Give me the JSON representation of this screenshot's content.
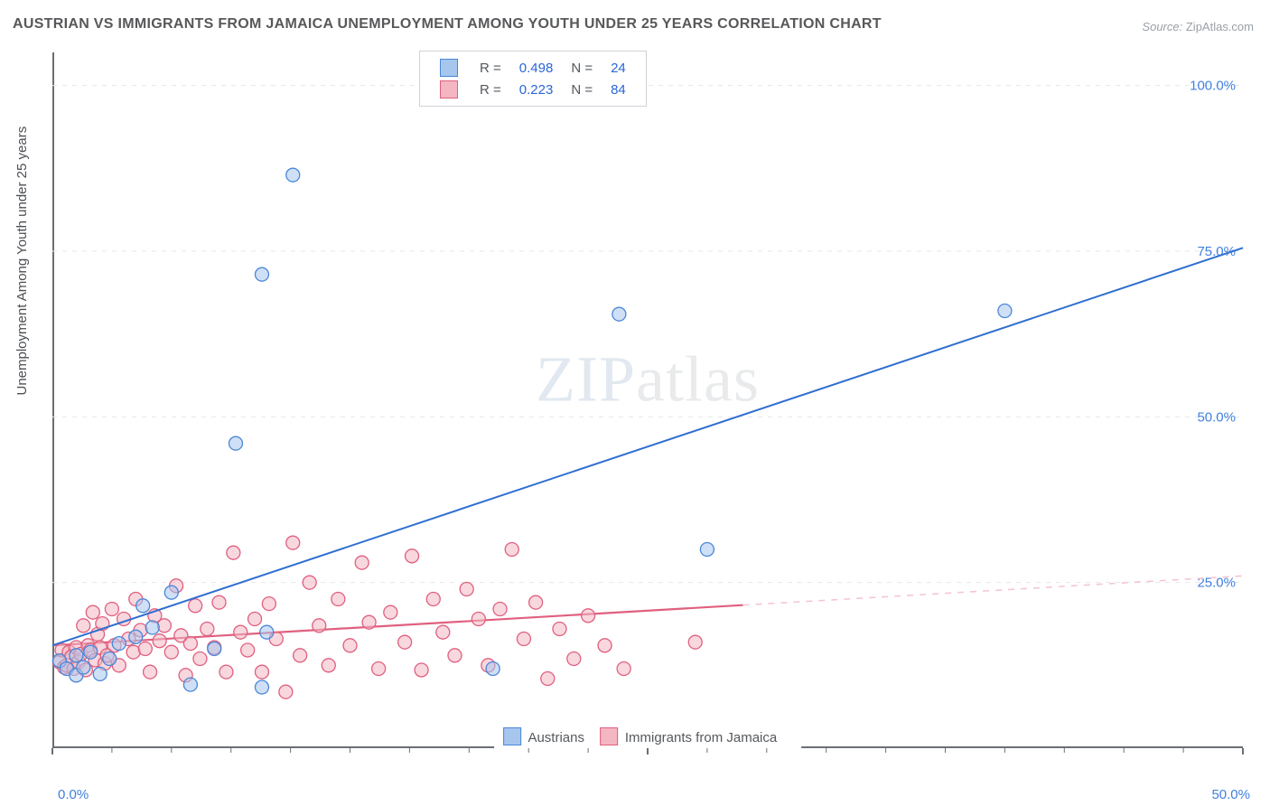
{
  "title": "AUSTRIAN VS IMMIGRANTS FROM JAMAICA UNEMPLOYMENT AMONG YOUTH UNDER 25 YEARS CORRELATION CHART",
  "source_label": "Source:",
  "source_value": "ZipAtlas.com",
  "y_axis_label": "Unemployment Among Youth under 25 years",
  "watermark_a": "ZIP",
  "watermark_b": "atlas",
  "chart": {
    "type": "scatter",
    "x_domain": [
      0,
      50
    ],
    "y_domain": [
      0,
      105
    ],
    "x_ticks_major": [
      0,
      25,
      50
    ],
    "x_tick_labels": {
      "left": "0.0%",
      "right": "50.0%"
    },
    "y_gridlines": [
      25,
      50,
      75,
      100
    ],
    "y_tick_labels": [
      "25.0%",
      "50.0%",
      "75.0%",
      "100.0%"
    ],
    "grid_color": "#e6e8ea",
    "axis_color": "#6b6e73",
    "tick_label_color": "#3f7fe0",
    "tick_label_fontsize": 15,
    "background": "#ffffff",
    "marker_radius": 7.5,
    "marker_stroke_width": 1.3,
    "series": [
      {
        "name": "Austrians",
        "fill": "#a7c6ee",
        "stroke": "#4a87d8",
        "fill_opacity": 0.55,
        "r_label": "R =",
        "r_value": "0.498",
        "n_label": "N =",
        "n_value": "24",
        "trend": {
          "x1": 0,
          "y1": 15.5,
          "x2": 50,
          "y2": 75.5,
          "dash_after_x": 50,
          "stroke": "#2f6fd0",
          "width": 2.0
        },
        "points": [
          [
            0.3,
            13.2
          ],
          [
            0.6,
            12.0
          ],
          [
            1.0,
            14.0
          ],
          [
            1.0,
            11.0
          ],
          [
            1.3,
            12.2
          ],
          [
            1.6,
            14.5
          ],
          [
            2.0,
            11.2
          ],
          [
            2.4,
            13.5
          ],
          [
            2.8,
            15.8
          ],
          [
            3.5,
            16.8
          ],
          [
            3.8,
            21.5
          ],
          [
            4.2,
            18.2
          ],
          [
            5.0,
            23.5
          ],
          [
            5.8,
            9.6
          ],
          [
            6.8,
            15.0
          ],
          [
            7.7,
            46.0
          ],
          [
            8.8,
            71.5
          ],
          [
            8.8,
            9.2
          ],
          [
            9.0,
            17.5
          ],
          [
            10.1,
            86.5
          ],
          [
            18.5,
            12.0
          ],
          [
            23.8,
            65.5
          ],
          [
            27.5,
            30.0
          ],
          [
            40.0,
            66.0
          ]
        ]
      },
      {
        "name": "Immigrants from Jamaica",
        "fill": "#f3b6c2",
        "stroke": "#e0607f",
        "fill_opacity": 0.55,
        "r_label": "R =",
        "r_value": "0.223",
        "n_label": "N =",
        "n_value": "84",
        "trend": {
          "x1": 0,
          "y1": 15.5,
          "x2": 50,
          "y2": 26.0,
          "dash_after_x": 29,
          "stroke": "#e0607f",
          "width": 2.2,
          "dash_stroke": "#f4c5cf"
        },
        "points": [
          [
            0.3,
            13.0
          ],
          [
            0.4,
            14.8
          ],
          [
            0.5,
            12.2
          ],
          [
            0.6,
            12.5
          ],
          [
            0.7,
            14.5
          ],
          [
            0.8,
            13.8
          ],
          [
            0.9,
            12.0
          ],
          [
            1.0,
            15.2
          ],
          [
            1.1,
            13.0
          ],
          [
            1.2,
            14.2
          ],
          [
            1.3,
            18.5
          ],
          [
            1.4,
            11.8
          ],
          [
            1.5,
            15.5
          ],
          [
            1.6,
            14.8
          ],
          [
            1.7,
            20.5
          ],
          [
            1.8,
            13.3
          ],
          [
            1.9,
            17.2
          ],
          [
            2.0,
            15.2
          ],
          [
            2.1,
            18.8
          ],
          [
            2.2,
            12.8
          ],
          [
            2.3,
            14.0
          ],
          [
            2.5,
            21.0
          ],
          [
            2.6,
            15.5
          ],
          [
            2.8,
            12.5
          ],
          [
            3.0,
            19.5
          ],
          [
            3.2,
            16.5
          ],
          [
            3.4,
            14.5
          ],
          [
            3.5,
            22.5
          ],
          [
            3.7,
            17.8
          ],
          [
            3.9,
            15.0
          ],
          [
            4.1,
            11.5
          ],
          [
            4.3,
            20.0
          ],
          [
            4.5,
            16.2
          ],
          [
            4.7,
            18.5
          ],
          [
            5.0,
            14.5
          ],
          [
            5.2,
            24.5
          ],
          [
            5.4,
            17.0
          ],
          [
            5.6,
            11.0
          ],
          [
            5.8,
            15.8
          ],
          [
            6.0,
            21.5
          ],
          [
            6.2,
            13.5
          ],
          [
            6.5,
            18.0
          ],
          [
            6.8,
            15.2
          ],
          [
            7.0,
            22.0
          ],
          [
            7.3,
            11.5
          ],
          [
            7.6,
            29.5
          ],
          [
            7.9,
            17.5
          ],
          [
            8.2,
            14.8
          ],
          [
            8.5,
            19.5
          ],
          [
            8.8,
            11.5
          ],
          [
            9.1,
            21.8
          ],
          [
            9.4,
            16.5
          ],
          [
            9.8,
            8.5
          ],
          [
            10.1,
            31.0
          ],
          [
            10.4,
            14.0
          ],
          [
            10.8,
            25.0
          ],
          [
            11.2,
            18.5
          ],
          [
            11.6,
            12.5
          ],
          [
            12.0,
            22.5
          ],
          [
            12.5,
            15.5
          ],
          [
            13.0,
            28.0
          ],
          [
            13.3,
            19.0
          ],
          [
            13.7,
            12.0
          ],
          [
            14.2,
            20.5
          ],
          [
            14.8,
            16.0
          ],
          [
            15.1,
            29.0
          ],
          [
            15.5,
            11.8
          ],
          [
            16.0,
            22.5
          ],
          [
            16.4,
            17.5
          ],
          [
            16.9,
            14.0
          ],
          [
            17.4,
            24.0
          ],
          [
            17.9,
            19.5
          ],
          [
            18.3,
            12.5
          ],
          [
            18.8,
            21.0
          ],
          [
            19.3,
            30.0
          ],
          [
            19.8,
            16.5
          ],
          [
            20.3,
            22.0
          ],
          [
            20.8,
            10.5
          ],
          [
            21.3,
            18.0
          ],
          [
            21.9,
            13.5
          ],
          [
            22.5,
            20.0
          ],
          [
            23.2,
            15.5
          ],
          [
            24.0,
            12.0
          ],
          [
            27.0,
            16.0
          ]
        ]
      }
    ],
    "legend": {
      "items": [
        "Austrians",
        "Immigrants from Jamaica"
      ]
    }
  }
}
